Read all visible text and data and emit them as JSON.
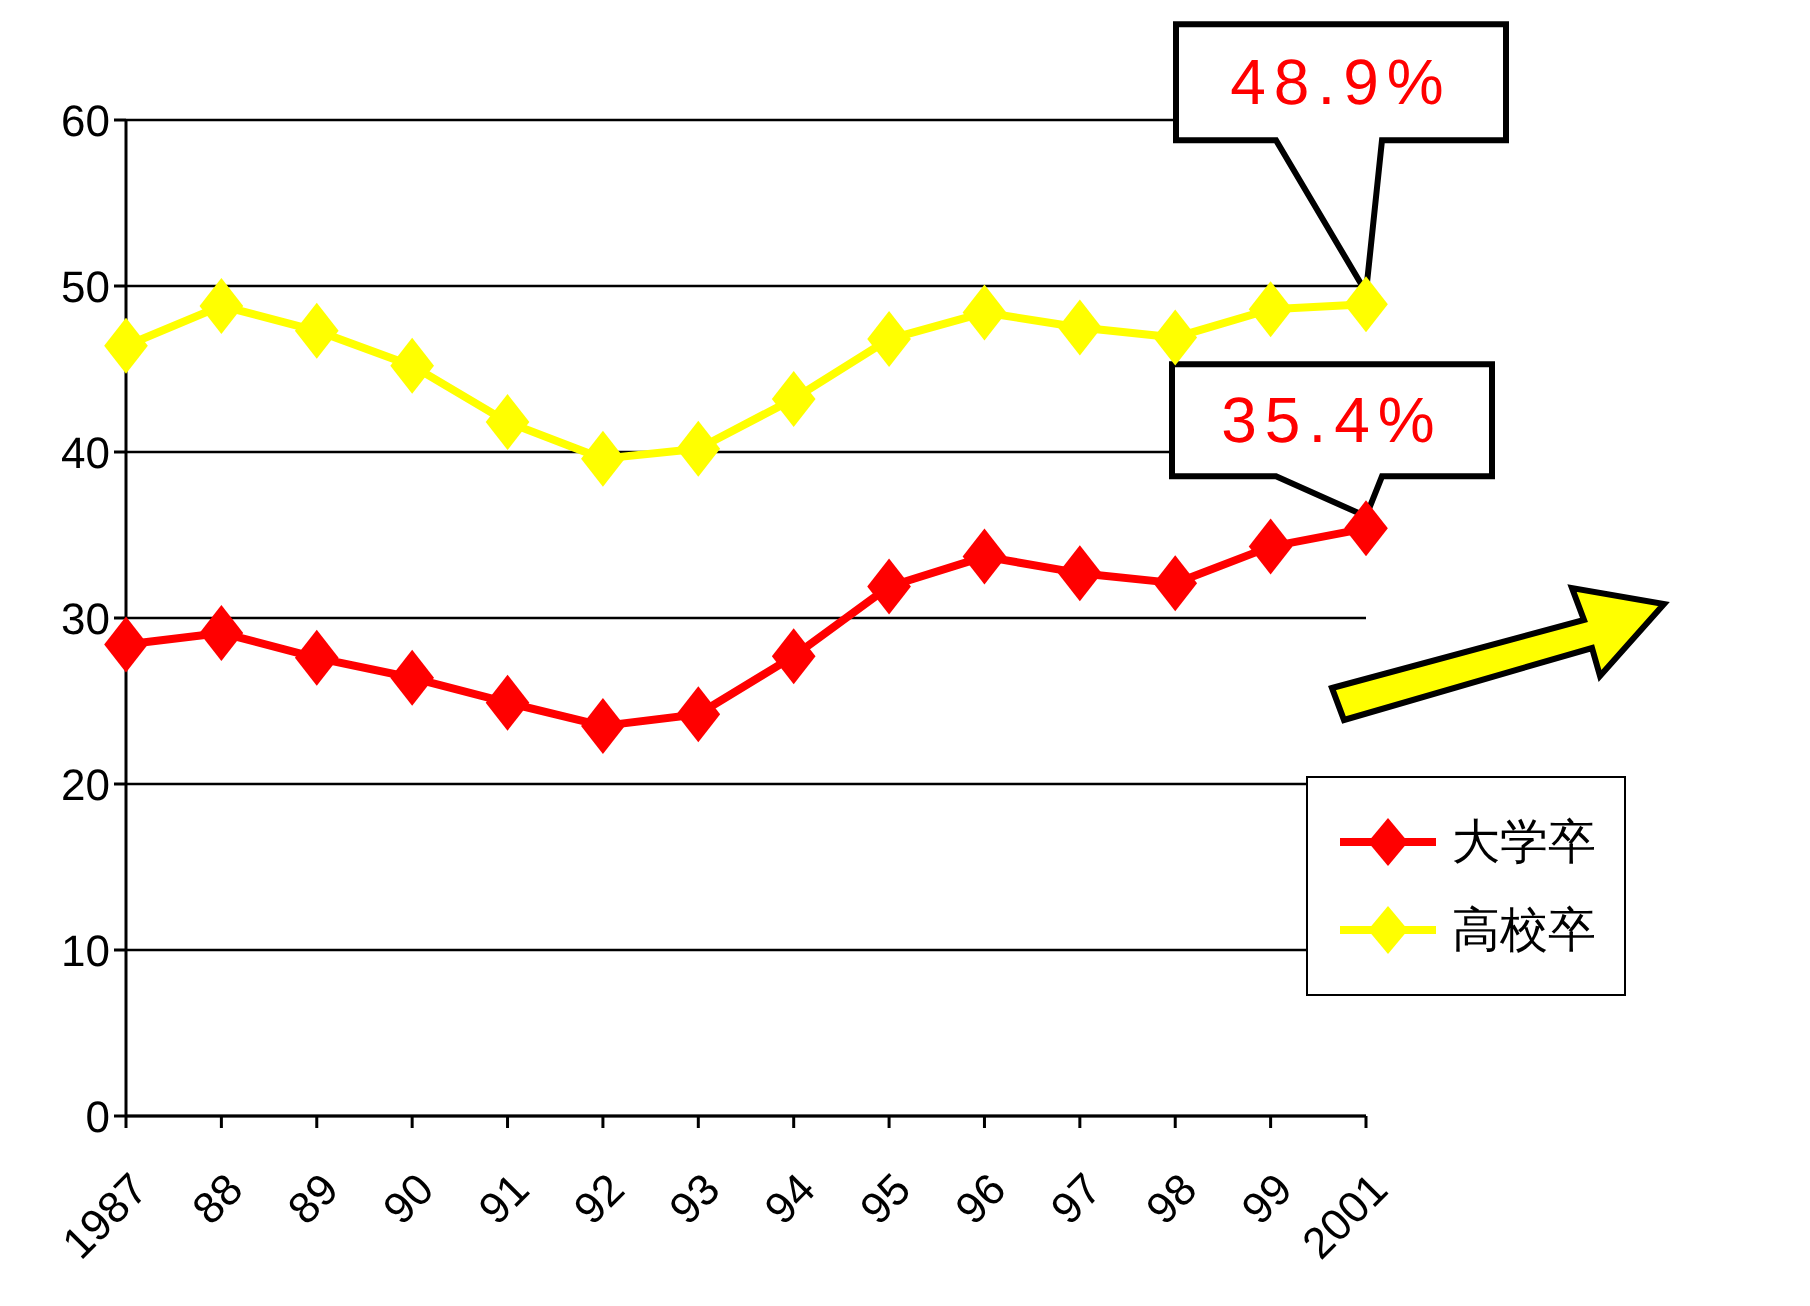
{
  "chart_data": {
    "type": "line",
    "categories": [
      "1987",
      "88",
      "89",
      "90",
      "91",
      "92",
      "93",
      "94",
      "95",
      "96",
      "97",
      "98",
      "99",
      "2001"
    ],
    "series": [
      {
        "name": "大学卒",
        "color": "#ff0000",
        "values": [
          28.4,
          29.1,
          27.6,
          26.4,
          24.9,
          23.5,
          24.2,
          27.7,
          31.9,
          33.7,
          32.7,
          32.1,
          34.3,
          35.4
        ]
      },
      {
        "name": "高校卒",
        "color": "#ffff00",
        "values": [
          46.4,
          48.8,
          47.3,
          45.2,
          41.8,
          39.6,
          40.2,
          43.2,
          46.8,
          48.4,
          47.5,
          46.9,
          48.6,
          48.9
        ]
      }
    ],
    "ylim": [
      0,
      60
    ],
    "yticks": [
      0,
      10,
      20,
      30,
      40,
      50,
      60
    ],
    "grid": "y",
    "legend": "bottom right",
    "marker": "diamond",
    "line_style": "solid",
    "annotations": [
      {
        "text": "48.9%",
        "x": "2001",
        "y": 48.9
      },
      {
        "text": "35.4%",
        "x": "2001",
        "y": 35.4
      }
    ]
  }
}
